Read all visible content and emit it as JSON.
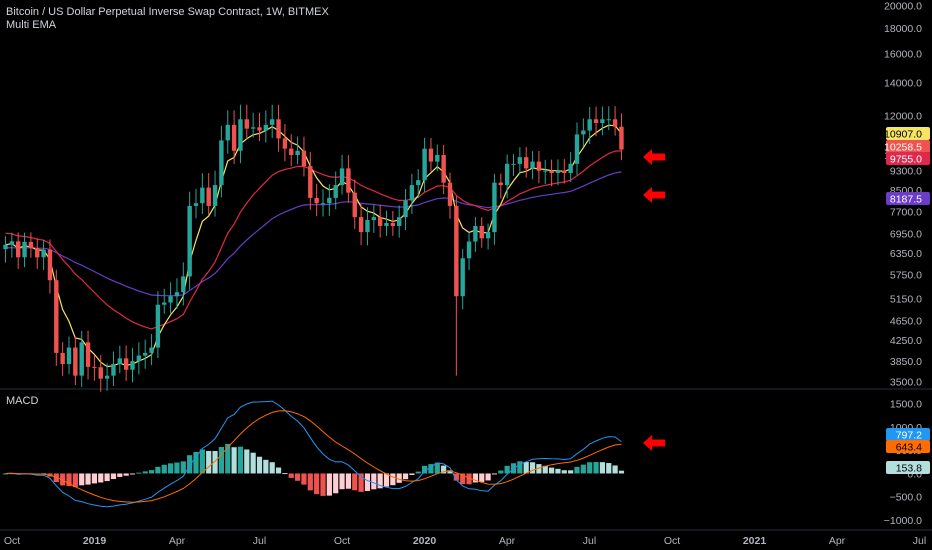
{
  "header": {
    "title": "Bitcoin / US Dollar Perpetual Inverse Swap Contract, 1W, BITMEX",
    "indicator": "Multi EMA"
  },
  "macd_panel": {
    "title": "MACD"
  },
  "colors": {
    "background": "#000000",
    "up": "#26a69a",
    "down": "#ef5350",
    "ema_fast": "#f5e563",
    "ema_mid": "#e0284d",
    "ema_slow": "#6a3cc7",
    "macd_line": "#2196f3",
    "signal_line": "#ff6d00",
    "hist_up_strong": "#26a69a",
    "hist_up_weak": "#b2dfdb",
    "hist_down_strong": "#ef5350",
    "hist_down_weak": "#ffcdd2",
    "arrow": "#ff0000"
  },
  "chart_data": [
    {
      "type": "candlestick",
      "title": "Bitcoin / US Dollar Perpetual Inverse Swap Contract, 1W, BITMEX",
      "y_scale": "log",
      "ylim": [
        3400,
        20500
      ],
      "x_ticks": [
        "Oct",
        "2019",
        "Apr",
        "Jul",
        "Oct",
        "2020",
        "Apr",
        "Jul",
        "Oct",
        "2021",
        "Apr",
        "Jul"
      ],
      "y_ticks": [
        20000,
        18000,
        16000,
        14000,
        12000,
        10000,
        9300,
        8500,
        7700,
        6950,
        6350,
        5750,
        5150,
        4650,
        4250,
        3850,
        3500
      ],
      "y_tick_labels": [
        "20000.0",
        "18000.0",
        "16000.0",
        "14000.0",
        "12000.0",
        "10000.0",
        "9300.0",
        "8500.0",
        "7700.0",
        "6950.0",
        "6350.0",
        "5750.0",
        "5150.0",
        "4650.0",
        "4250.0",
        "3850.0",
        "3500.0"
      ],
      "price_anchors": [
        [
          0,
          6600
        ],
        [
          4,
          6500
        ],
        [
          6,
          6450
        ],
        [
          7,
          5600
        ],
        [
          8,
          4000
        ],
        [
          9,
          3800
        ],
        [
          10,
          4100
        ],
        [
          11,
          3600
        ],
        [
          12,
          4200
        ],
        [
          13,
          3750
        ],
        [
          15,
          3550
        ],
        [
          16,
          3600
        ],
        [
          17,
          3800
        ],
        [
          18,
          3900
        ],
        [
          19,
          3700
        ],
        [
          20,
          3850
        ],
        [
          21,
          3950
        ],
        [
          22,
          4000
        ],
        [
          23,
          4100
        ],
        [
          24,
          5000
        ],
        [
          25,
          5050
        ],
        [
          26,
          5200
        ],
        [
          28,
          5700
        ],
        [
          29,
          7900
        ],
        [
          30,
          8000
        ],
        [
          31,
          8600
        ],
        [
          32,
          7900
        ],
        [
          33,
          8700
        ],
        [
          34,
          10700
        ],
        [
          35,
          11500
        ],
        [
          36,
          10200
        ],
        [
          37,
          11800
        ],
        [
          38,
          11300
        ],
        [
          40,
          11200
        ],
        [
          41,
          11500
        ],
        [
          42,
          11800
        ],
        [
          43,
          10800
        ],
        [
          44,
          10300
        ],
        [
          45,
          10000
        ],
        [
          46,
          10200
        ],
        [
          47,
          9500
        ],
        [
          48,
          8200
        ],
        [
          49,
          8000
        ],
        [
          50,
          8000
        ],
        [
          51,
          8200
        ],
        [
          52,
          8700
        ],
        [
          53,
          9400
        ],
        [
          54,
          8400
        ],
        [
          55,
          7500
        ],
        [
          56,
          7000
        ],
        [
          57,
          7400
        ],
        [
          58,
          7500
        ],
        [
          59,
          7200
        ],
        [
          60,
          7300
        ],
        [
          61,
          7200
        ],
        [
          62,
          7500
        ],
        [
          63,
          8100
        ],
        [
          64,
          8700
        ],
        [
          65,
          8900
        ],
        [
          66,
          10300
        ],
        [
          67,
          9700
        ],
        [
          68,
          10000
        ],
        [
          69,
          8800
        ],
        [
          70,
          7900
        ],
        [
          71,
          5200
        ],
        [
          72,
          6200
        ],
        [
          73,
          6700
        ],
        [
          74,
          7200
        ],
        [
          75,
          6800
        ],
        [
          76,
          7000
        ],
        [
          77,
          8800
        ],
        [
          78,
          8700
        ],
        [
          79,
          9600
        ],
        [
          80,
          9600
        ],
        [
          81,
          9900
        ],
        [
          82,
          9400
        ],
        [
          83,
          9700
        ],
        [
          84,
          9300
        ],
        [
          85,
          9300
        ],
        [
          86,
          9200
        ],
        [
          87,
          9300
        ],
        [
          88,
          9200
        ],
        [
          89,
          9600
        ],
        [
          90,
          11000
        ],
        [
          91,
          11200
        ],
        [
          92,
          11800
        ],
        [
          93,
          11600
        ],
        [
          94,
          11800
        ],
        [
          95,
          11800
        ],
        [
          96,
          11400
        ],
        [
          97,
          10258.5
        ]
      ],
      "last_values": {
        "close": "10258.5",
        "ema_fast": "10907.0",
        "ema_mid": "9755.0",
        "ema_slow": "8187.5"
      }
    },
    {
      "type": "line+bar",
      "title": "MACD",
      "ylim": [
        -1150,
        1750
      ],
      "y_ticks": [
        1500,
        1000,
        500,
        0,
        -500,
        -1000
      ],
      "y_tick_labels": [
        "1500.0",
        "1000.0",
        "500.0",
        "0.0",
        "−500.0",
        "−1000.0"
      ],
      "series": [
        {
          "name": "MACD",
          "last": "797.2"
        },
        {
          "name": "Signal",
          "last": "643.4"
        },
        {
          "name": "Histogram",
          "last": "153.8"
        }
      ]
    }
  ]
}
